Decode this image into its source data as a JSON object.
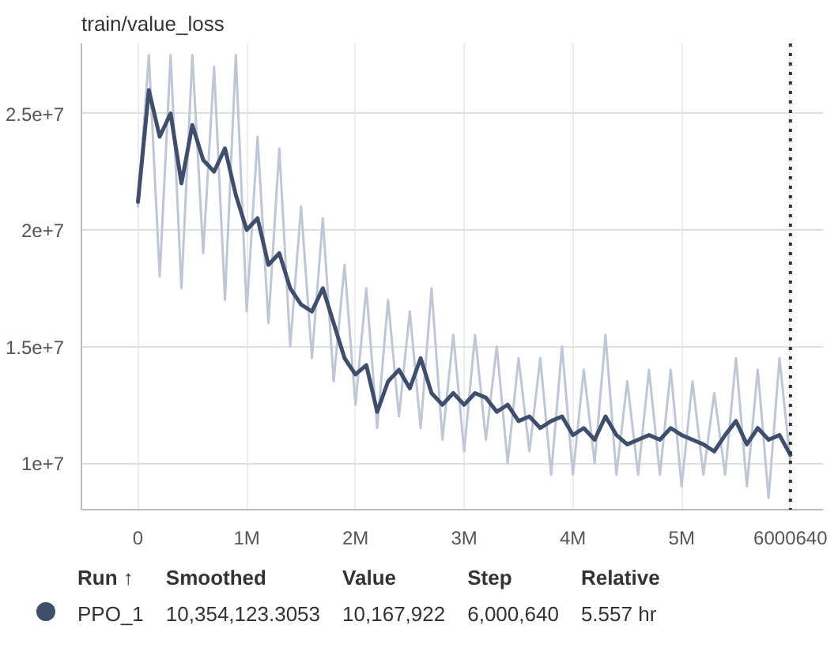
{
  "chart_data": {
    "type": "line",
    "title": "train/value_loss",
    "xlim": [
      -520000,
      6300000
    ],
    "ylim": [
      8000000,
      28000000
    ],
    "xticks": [
      {
        "value": 0,
        "label": "0"
      },
      {
        "value": 1000000,
        "label": "1M"
      },
      {
        "value": 2000000,
        "label": "2M"
      },
      {
        "value": 3000000,
        "label": "3M"
      },
      {
        "value": 4000000,
        "label": "4M"
      },
      {
        "value": 5000000,
        "label": "5M"
      }
    ],
    "yticks": [
      {
        "value": 10000000,
        "label": "1e+7"
      },
      {
        "value": 15000000,
        "label": "1.5e+7"
      },
      {
        "value": 20000000,
        "label": "2e+7"
      },
      {
        "value": 25000000,
        "label": "2.5e+7"
      }
    ],
    "grid": true,
    "legend": "bottom",
    "x": [
      0,
      100000,
      200000,
      300000,
      400000,
      500000,
      600000,
      700000,
      800000,
      900000,
      1000000,
      1100000,
      1200000,
      1300000,
      1400000,
      1500000,
      1600000,
      1700000,
      1800000,
      1900000,
      2000000,
      2100000,
      2200000,
      2300000,
      2400000,
      2500000,
      2600000,
      2700000,
      2800000,
      2900000,
      3000000,
      3100000,
      3200000,
      3300000,
      3400000,
      3500000,
      3600000,
      3700000,
      3800000,
      3900000,
      4000000,
      4100000,
      4200000,
      4300000,
      4400000,
      4500000,
      4600000,
      4700000,
      4800000,
      4900000,
      5000000,
      5100000,
      5200000,
      5300000,
      5400000,
      5500000,
      5600000,
      5700000,
      5800000,
      5900000,
      6000640
    ],
    "series": [
      {
        "color": "#bfc7d6",
        "values": [
          21000000,
          27500000,
          18000000,
          27500000,
          17500000,
          27500000,
          19000000,
          27000000,
          17000000,
          27500000,
          16500000,
          24000000,
          16000000,
          23500000,
          15000000,
          21000000,
          14500000,
          20500000,
          13500000,
          18500000,
          12500000,
          17500000,
          11500000,
          17000000,
          12000000,
          16500000,
          11500000,
          17500000,
          11000000,
          15500000,
          10500000,
          15500000,
          11000000,
          15000000,
          10000000,
          14500000,
          10500000,
          14500000,
          9500000,
          15000000,
          9500000,
          14000000,
          10000000,
          15500000,
          9500000,
          13500000,
          9500000,
          14000000,
          9500000,
          14000000,
          9000000,
          13500000,
          9500000,
          13000000,
          9500000,
          14500000,
          9000000,
          14000000,
          8500000,
          14500000,
          10000000
        ]
      },
      {
        "name": "PPO_1",
        "color": "#3f4e6a",
        "values": [
          21200000,
          26000000,
          24000000,
          25000000,
          22000000,
          24500000,
          23000000,
          22500000,
          23500000,
          21500000,
          20000000,
          20500000,
          18500000,
          19000000,
          17500000,
          16800000,
          16500000,
          17500000,
          16000000,
          14500000,
          13800000,
          14200000,
          12200000,
          13500000,
          14000000,
          13200000,
          14500000,
          13000000,
          12500000,
          13000000,
          12500000,
          13000000,
          12800000,
          12200000,
          12500000,
          11800000,
          12000000,
          11500000,
          11800000,
          12000000,
          11200000,
          11500000,
          11000000,
          12000000,
          11200000,
          10800000,
          11000000,
          11200000,
          11000000,
          11500000,
          11200000,
          11000000,
          10800000,
          10500000,
          11200000,
          11800000,
          10800000,
          11500000,
          11000000,
          11200000,
          10350000
        ]
      }
    ],
    "ref_lines": [
      {
        "axis": "x",
        "value": 6000640,
        "label": "6000640",
        "line_style": "dotted",
        "color": "#333333"
      }
    ],
    "annotations": [
      "Run ↑",
      "Smoothed",
      "Value",
      "Step",
      "Relative",
      "10,354,123.3053",
      "10,167,922",
      "6,000,640",
      "5.557 hr"
    ]
  }
}
